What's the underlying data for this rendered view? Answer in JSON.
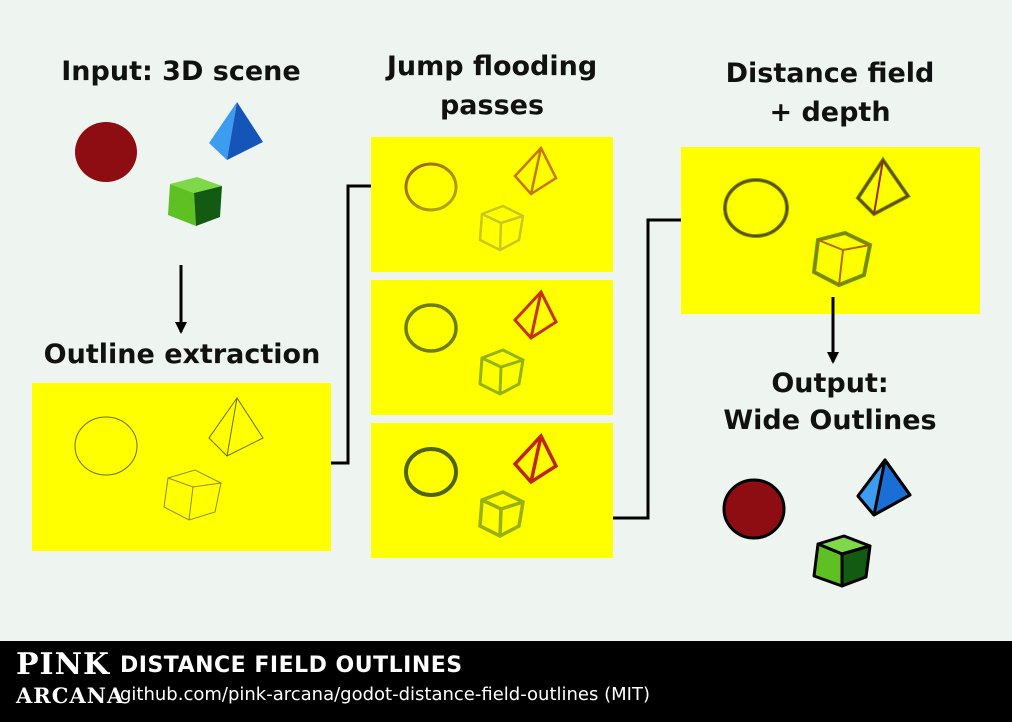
{
  "labels": {
    "input": "Input: 3D scene",
    "outline": "Outline extraction",
    "jump_line1": "Jump flooding",
    "jump_line2": "passes",
    "distance_line1": "Distance field",
    "distance_line2": "+ depth",
    "output_line1": "Output:",
    "output_line2": "Wide Outlines"
  },
  "footer": {
    "logo_top": "PINK",
    "logo_bottom": "ARCANA",
    "title": "DISTANCE FIELD OUTLINES",
    "subtitle": "github.com/pink-arcana/godot-distance-field-outlines (MIT)"
  },
  "colors": {
    "background": "#eef5f0",
    "panel": "#ffff00",
    "sphere": "#8e0d13",
    "pyramid": "#1a6fd6",
    "cube": "#3f9b1f",
    "arrow": "#000000"
  },
  "icons": [
    "sphere-icon",
    "pyramid-icon",
    "cube-icon"
  ]
}
